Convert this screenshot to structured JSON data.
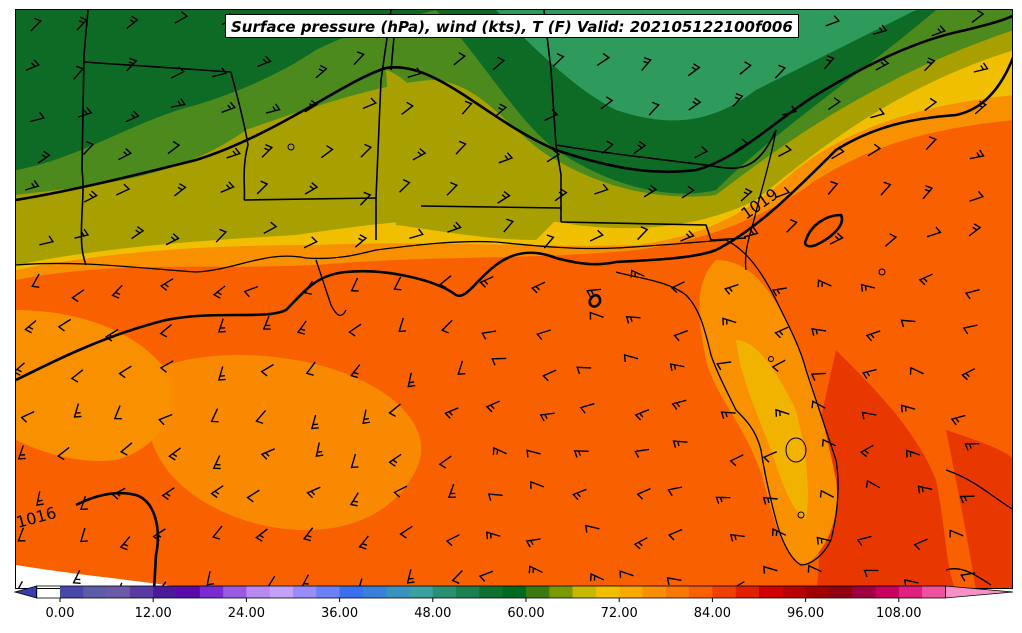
{
  "title": "Surface pressure (hPa), wind (kts), T (F) Valid: 202105122100f006",
  "colorbar": {
    "ticks": [
      "0.00",
      "12.00",
      "24.00",
      "36.00",
      "48.00",
      "60.00",
      "72.00",
      "84.00",
      "96.00",
      "108.00"
    ],
    "min": -3,
    "max": 120,
    "step": 3,
    "colors": [
      "#3b3bb0",
      "#4848a8",
      "#5c5ca8",
      "#6a5aa8",
      "#5a3aa0",
      "#4a1a98",
      "#5a0aa8",
      "#7a2ad0",
      "#9a5ae0",
      "#b88af0",
      "#c4a0f8",
      "#9a8cf8",
      "#6a80f8",
      "#3a70f0",
      "#3a80d8",
      "#3a90c0",
      "#3aa0a0",
      "#2a9070",
      "#1a8050",
      "#107030",
      "#006a20",
      "#3a7a10",
      "#7a9a00",
      "#c8b800",
      "#f0c000",
      "#f8aa00",
      "#f89000",
      "#f87800",
      "#f86000",
      "#f04000",
      "#e02000",
      "#d00000",
      "#b80000",
      "#a00000",
      "#900010",
      "#a00040",
      "#c80060",
      "#e02080",
      "#f050a0",
      "#f890c8"
    ]
  },
  "contour_labels": [
    "1019",
    "1016",
    "1016"
  ],
  "colors": {
    "green_dark": "#0d6b26",
    "green_mid": "#2e9a5c",
    "olive": "#4d8a1e",
    "yellow_olive": "#a8a000",
    "gold": "#f0c000",
    "orange": "#f89000",
    "dark_orange": "#f86000",
    "red_orange": "#e83800"
  }
}
